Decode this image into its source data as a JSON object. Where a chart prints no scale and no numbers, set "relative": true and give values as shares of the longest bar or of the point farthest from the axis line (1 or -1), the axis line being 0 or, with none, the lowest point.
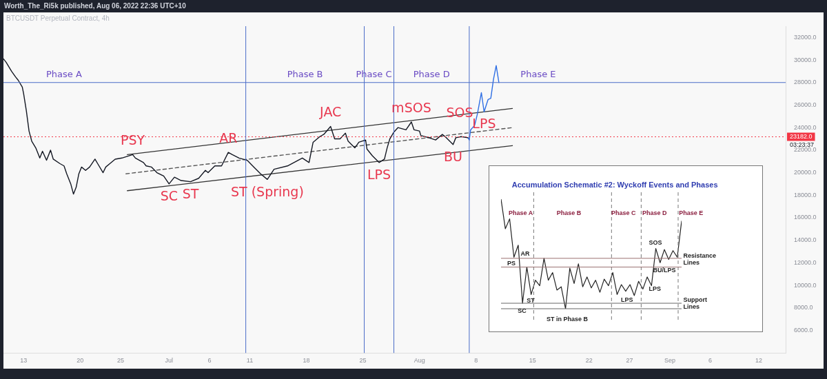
{
  "chart_data": [
    {
      "type": "line",
      "title": "BTCUSDT Perpetual Contract, 4h",
      "xlim": [
        "2022-06-10T12:00",
        "2022-09-15T08:00"
      ],
      "xticks": [
        {
          "value": "2022-06-13",
          "label": "13"
        },
        {
          "value": "2022-06-20",
          "label": "20"
        },
        {
          "value": "2022-06-25",
          "label": "25"
        },
        {
          "value": "2022-07-01",
          "label": "Jul"
        },
        {
          "value": "2022-07-06",
          "label": "6"
        },
        {
          "value": "2022-07-11",
          "label": "11"
        },
        {
          "value": "2022-07-18",
          "label": "18"
        },
        {
          "value": "2022-07-25",
          "label": "25"
        },
        {
          "value": "2022-08-01",
          "label": "Aug"
        },
        {
          "value": "2022-08-08",
          "label": "8"
        },
        {
          "value": "2022-08-15",
          "label": "15"
        },
        {
          "value": "2022-08-22",
          "label": "22"
        },
        {
          "value": "2022-08-27",
          "label": "27"
        },
        {
          "value": "2022-09-01",
          "label": "Sep"
        },
        {
          "value": "2022-09-06",
          "label": "6"
        },
        {
          "value": "2022-09-12",
          "label": "12"
        }
      ],
      "ylim": [
        4000,
        33000
      ],
      "yticks": [
        {
          "value": 6000,
          "label": "6000.0"
        },
        {
          "value": 8000,
          "label": "8000.0"
        },
        {
          "value": 10000,
          "label": "10000.0"
        },
        {
          "value": 12000,
          "label": "12000.0"
        },
        {
          "value": 14000,
          "label": "14000.0"
        },
        {
          "value": 16000,
          "label": "16000.0"
        },
        {
          "value": 18000,
          "label": "18000.0"
        },
        {
          "value": 20000,
          "label": "20000.0"
        },
        {
          "value": 22000,
          "label": "22000.0"
        },
        {
          "value": 24000,
          "label": "24000.0"
        },
        {
          "value": 26000,
          "label": "26000.0"
        },
        {
          "value": 28000,
          "label": "28000.0"
        },
        {
          "value": 30000,
          "label": "30000.0"
        },
        {
          "value": 32000,
          "label": "32000.0"
        }
      ],
      "series": [
        {
          "color": "#131722",
          "x": [
            "2022-06-10T12:00",
            "2022-06-10T20:00",
            "2022-06-11T12:00",
            "2022-06-12T00:00",
            "2022-06-12T08:00",
            "2022-06-12T20:00",
            "2022-06-13T00:00",
            "2022-06-13T08:00",
            "2022-06-13T16:00",
            "2022-06-14T00:00",
            "2022-06-14T12:00",
            "2022-06-15T00:00",
            "2022-06-15T08:00",
            "2022-06-15T20:00",
            "2022-06-16T08:00",
            "2022-06-16T16:00",
            "2022-06-17T12:00",
            "2022-06-18T00:00",
            "2022-06-18T08:00",
            "2022-06-18T20:00",
            "2022-06-19T04:00",
            "2022-06-19T12:00",
            "2022-06-19T20:00",
            "2022-06-20T04:00",
            "2022-06-20T16:00",
            "2022-06-21T04:00",
            "2022-06-21T20:00",
            "2022-06-22T04:00",
            "2022-06-22T20:00",
            "2022-06-23T04:00",
            "2022-06-23T16:00",
            "2022-06-24T08:00",
            "2022-06-25T04:00",
            "2022-06-26T12:00",
            "2022-06-26T20:00",
            "2022-06-27T20:00",
            "2022-06-28T04:00",
            "2022-06-28T20:00",
            "2022-06-29T12:00",
            "2022-06-30T08:00",
            "2022-07-01T00:00",
            "2022-07-01T16:00",
            "2022-07-02T12:00",
            "2022-07-03T16:00",
            "2022-07-04T16:00",
            "2022-07-05T12:00",
            "2022-07-05T20:00",
            "2022-07-06T16:00",
            "2022-07-07T12:00",
            "2022-07-08T08:00",
            "2022-07-08T20:00",
            "2022-07-09T16:00",
            "2022-07-10T16:00",
            "2022-07-11T12:00",
            "2022-07-12T08:00",
            "2022-07-13T04:00",
            "2022-07-14T00:00",
            "2022-07-15T16:00",
            "2022-07-17T12:00",
            "2022-07-18T08:00",
            "2022-07-18T20:00",
            "2022-07-19T16:00",
            "2022-07-20T04:00",
            "2022-07-21T00:00",
            "2022-07-21T12:00",
            "2022-07-22T04:00",
            "2022-07-22T20:00",
            "2022-07-23T04:00",
            "2022-07-24T00:00",
            "2022-07-24T12:00",
            "2022-07-25T08:00",
            "2022-07-25T12:00",
            "2022-07-26T04:00",
            "2022-07-27T00:00",
            "2022-07-27T16:00",
            "2022-07-28T00:00",
            "2022-07-28T08:00",
            "2022-07-28T20:00",
            "2022-07-29T08:00",
            "2022-07-30T08:00",
            "2022-07-31T00:00",
            "2022-07-31T08:00",
            "2022-08-01T00:00",
            "2022-08-01T04:00",
            "2022-08-02T04:00",
            "2022-08-03T00:00",
            "2022-08-03T20:00",
            "2022-08-04T08:00",
            "2022-08-05T04:00",
            "2022-08-05T12:00",
            "2022-08-06T04:00",
            "2022-08-07T00:00"
          ],
          "values": [
            30100,
            29800,
            29000,
            28500,
            28200,
            27600,
            27000,
            25500,
            23700,
            22800,
            22200,
            21300,
            21900,
            21100,
            22000,
            21200,
            20800,
            20600,
            19900,
            19000,
            18100,
            18700,
            19900,
            20500,
            20200,
            20500,
            21200,
            20800,
            20000,
            20500,
            20800,
            21200,
            21300,
            21600,
            21300,
            20900,
            20600,
            20500,
            20000,
            19700,
            19000,
            19600,
            19300,
            19200,
            19500,
            20200,
            20000,
            20600,
            20600,
            21800,
            21600,
            21300,
            21100,
            20500,
            19900,
            19400,
            20300,
            20600,
            21300,
            20900,
            22700,
            23200,
            23400,
            24100,
            23000,
            23000,
            23500,
            22800,
            22200,
            22700,
            22900,
            22100,
            21500,
            20900,
            21200,
            22200,
            23000,
            23600,
            24000,
            23800,
            24500,
            23800,
            23700,
            23300,
            23100,
            22900,
            23400,
            23100,
            22500,
            23100,
            23200,
            23100
          ]
        },
        {
          "color": "#2f6fe4",
          "x": [
            "2022-08-07T00:00",
            "2022-08-07T04:00",
            "2022-08-07T08:00",
            "2022-08-07T20:00",
            "2022-08-08T04:00",
            "2022-08-08T16:00",
            "2022-08-09T00:00",
            "2022-08-09T12:00",
            "2022-08-09T20:00",
            "2022-08-10T04:00",
            "2022-08-10T12:00",
            "2022-08-10T20:00"
          ],
          "values": [
            23100,
            22900,
            23800,
            24200,
            25200,
            27100,
            25400,
            26500,
            26600,
            28300,
            29500,
            28000
          ]
        },
        {
          "color": "#333333",
          "x": [
            "2022-06-25T20:00",
            "2022-08-12T12:00"
          ],
          "values": [
            21600,
            25700
          ]
        },
        {
          "color": "#555555",
          "line_style": "dashed",
          "x": [
            "2022-06-25T16:00",
            "2022-08-12T12:00"
          ],
          "values": [
            19900,
            24000
          ]
        },
        {
          "color": "#333333",
          "x": [
            "2022-06-25T20:00",
            "2022-08-12T12:00"
          ],
          "values": [
            18400,
            22400
          ]
        }
      ],
      "ref_lines": [
        {
          "axis": "y",
          "value": 28000,
          "color": "#4a6cc8",
          "label": "Phase A"
        },
        {
          "axis": "y",
          "value": 23182,
          "label": "23182.0",
          "color": "#f23645",
          "line_style": "dotted"
        },
        {
          "axis": "x",
          "value": "2022-07-10T12:00",
          "color": "#4a6cc8",
          "label": "Phase B"
        },
        {
          "axis": "x",
          "value": "2022-07-25T04:00",
          "color": "#4a6cc8",
          "label": "Phase C"
        },
        {
          "axis": "x",
          "value": "2022-07-28T20:00",
          "color": "#4a6cc8",
          "label": "Phase D"
        },
        {
          "axis": "x",
          "value": "2022-08-07T04:00",
          "color": "#4a6cc8",
          "label": "Phase E"
        }
      ],
      "annotations": [
        "Worth_The_Ri5k published, Aug 06, 2022 22:36 UTC+10",
        "03:23:37",
        {
          "text": "PSY",
          "x": "2022-06-26T12:00",
          "y": 21600
        },
        {
          "text": "AR",
          "x": "2022-07-08T08:00",
          "y": 21800
        },
        {
          "text": "JAC",
          "x": "2022-07-21T00:00",
          "y": 24100
        },
        {
          "text": "mSOS",
          "x": "2022-07-31T00:00",
          "y": 24500
        },
        {
          "text": "SOS",
          "x": "2022-08-08T04:00",
          "y": 25200
        },
        {
          "text": "LPS",
          "x": "2022-08-09T00:00",
          "y": 25400
        },
        {
          "text": "BU",
          "x": "2022-08-05T04:00",
          "y": 22500
        },
        {
          "text": "LPS",
          "x": "2022-07-27T00:00",
          "y": 20900
        },
        {
          "text": "SC",
          "x": "2022-07-01T00:00",
          "y": 19000
        },
        {
          "text": "ST",
          "x": "2022-07-03T16:00",
          "y": 19200
        },
        {
          "text": "ST (Spring)",
          "x": "2022-07-13T04:00",
          "y": 19400
        }
      ],
      "legend": false,
      "grid": false,
      "marker": "none"
    },
    {
      "type": "line",
      "relative": true,
      "title": "Accumulation Schematic #2: Wyckoff Events and Phases",
      "tick_labels": false,
      "categories": [
        null,
        null,
        null,
        null,
        null,
        null,
        null,
        null,
        null,
        null,
        null,
        null,
        null,
        null,
        null,
        null,
        null,
        null,
        null,
        null,
        null,
        null,
        null,
        null,
        null,
        null,
        null,
        null,
        null,
        null,
        null,
        null,
        null,
        null,
        null,
        null,
        null,
        null,
        null,
        null,
        null,
        null,
        null
      ],
      "series": [
        {
          "color": "#222222",
          "values": [
            1.0,
            0.73,
            0.82,
            0.47,
            0.58,
            0.05,
            0.38,
            0.13,
            0.26,
            0.21,
            0.46,
            0.26,
            0.33,
            0.17,
            0.2,
            0,
            0.37,
            0.23,
            0.41,
            0.2,
            0.29,
            0.19,
            0.26,
            0.15,
            0.27,
            0.21,
            0.33,
            0.13,
            0.22,
            0.16,
            0.22,
            0.12,
            0.25,
            0.18,
            0.29,
            0.21,
            0.55,
            0.42,
            0.54,
            0.45,
            0.53,
            0.47,
            0.8
          ]
        }
      ],
      "ref_lines": [
        {
          "axis": "y",
          "value": 0.46,
          "color": "#9a7070"
        },
        {
          "axis": "y",
          "value": 0.38,
          "color": "#9a7070"
        },
        {
          "axis": "y",
          "value": 0.05,
          "color": "#666666"
        },
        {
          "axis": "y",
          "value": 0,
          "color": "#666666"
        }
      ],
      "legend": false,
      "marker": "none",
      "annotations": [
        "Phase A",
        "Phase B",
        "Phase C",
        "Phase D",
        "Phase E",
        "PS",
        "AR",
        "ST",
        "SC",
        "ST in Phase B",
        "LPS",
        "LPS",
        "SOS",
        "BU/LPS",
        "Resistance Lines",
        "Support Lines"
      ]
    }
  ]
}
